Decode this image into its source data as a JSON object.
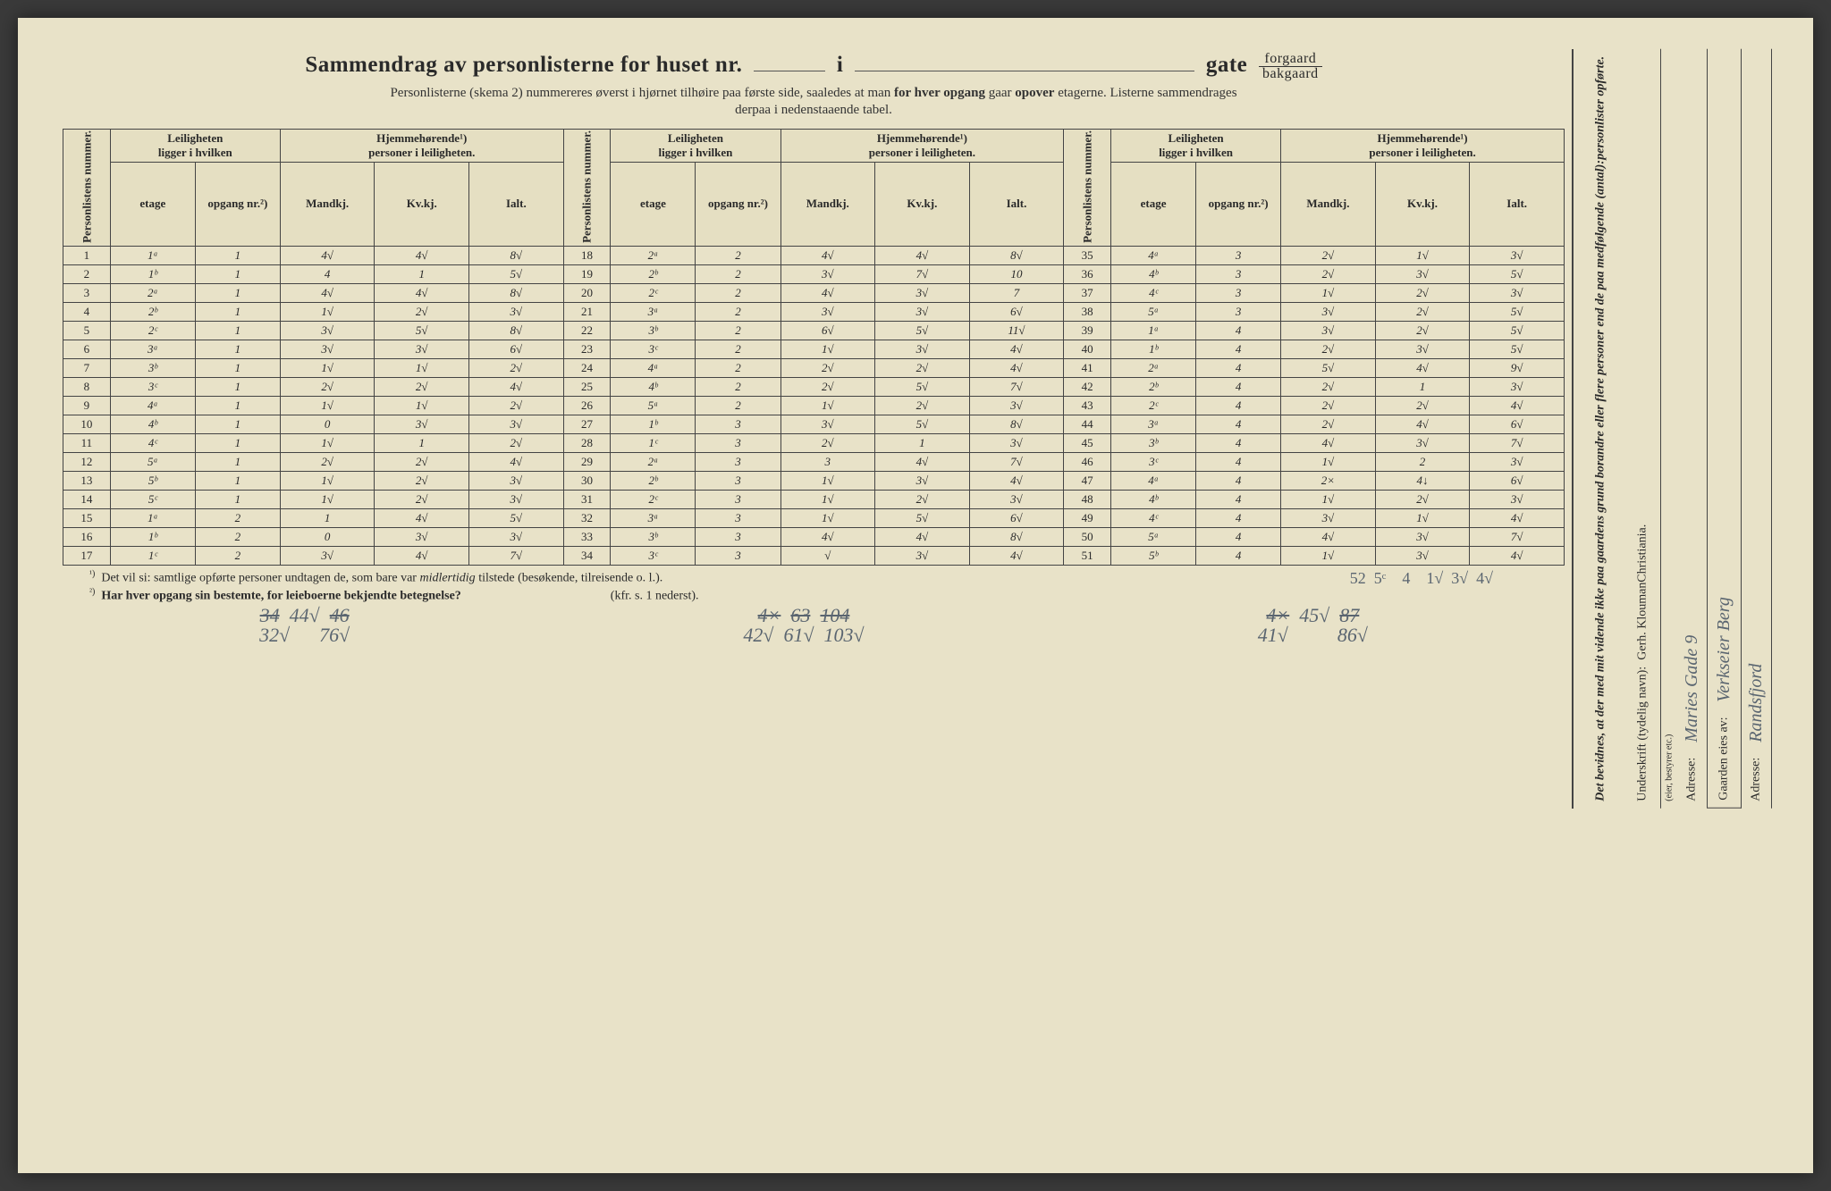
{
  "title": {
    "prefix": "Sammendrag av personlisterne for huset nr.",
    "mid": "i",
    "suffix": "gate",
    "frac_num": "forgaard",
    "frac_den": "bakgaard"
  },
  "subtitle_1": "Personlisterne (skema 2) nummereres øverst i hjørnet tilhøire paa første side, saaledes at man ",
  "subtitle_bold1": "for hver opgang",
  "subtitle_2": " gaar ",
  "subtitle_bold2": "opover",
  "subtitle_3": " etagerne.  Listerne sammendrages",
  "subtitle_4": "derpaa i nedenstaaende tabel.",
  "headers": {
    "personlistens": "Personlistens nummer.",
    "leiligheten_l1": "Leiligheten",
    "leiligheten_l2": "ligger i hvilken",
    "hjemme_l1": "Hjemmehørende¹)",
    "hjemme_l2": "personer i leiligheten.",
    "etage": "etage",
    "opgang": "opgang nr.²)",
    "mandkj": "Mandkj.",
    "kvkj": "Kv.kj.",
    "ialt": "Ialt."
  },
  "rows": [
    {
      "n": 1,
      "e": "1ᵃ",
      "o": "1",
      "m": "4√",
      "k": "4√",
      "i": "8√"
    },
    {
      "n": 2,
      "e": "1ᵇ",
      "o": "1",
      "m": "4",
      "k": "1",
      "i": "5√"
    },
    {
      "n": 3,
      "e": "2ᵃ",
      "o": "1",
      "m": "4√",
      "k": "4√",
      "i": "8√"
    },
    {
      "n": 4,
      "e": "2ᵇ",
      "o": "1",
      "m": "1√",
      "k": "2√",
      "i": "3√"
    },
    {
      "n": 5,
      "e": "2ᶜ",
      "o": "1",
      "m": "3√",
      "k": "5√",
      "i": "8√"
    },
    {
      "n": 6,
      "e": "3ᵃ",
      "o": "1",
      "m": "3√",
      "k": "3√",
      "i": "6√"
    },
    {
      "n": 7,
      "e": "3ᵇ",
      "o": "1",
      "m": "1√",
      "k": "1√",
      "i": "2√"
    },
    {
      "n": 8,
      "e": "3ᶜ",
      "o": "1",
      "m": "2√",
      "k": "2√",
      "i": "4√"
    },
    {
      "n": 9,
      "e": "4ᵃ",
      "o": "1",
      "m": "1√",
      "k": "1√",
      "i": "2√"
    },
    {
      "n": 10,
      "e": "4ᵇ",
      "o": "1",
      "m": "0",
      "k": "3√",
      "i": "3√"
    },
    {
      "n": 11,
      "e": "4ᶜ",
      "o": "1",
      "m": "1√",
      "k": "1",
      "i": "2√"
    },
    {
      "n": 12,
      "e": "5ᵃ",
      "o": "1",
      "m": "2√",
      "k": "2√",
      "i": "4√"
    },
    {
      "n": 13,
      "e": "5ᵇ",
      "o": "1",
      "m": "1√",
      "k": "2√",
      "i": "3√"
    },
    {
      "n": 14,
      "e": "5ᶜ",
      "o": "1",
      "m": "1√",
      "k": "2√",
      "i": "3√"
    },
    {
      "n": 15,
      "e": "1ᵃ",
      "o": "2",
      "m": "1",
      "k": "4√",
      "i": "5√"
    },
    {
      "n": 16,
      "e": "1ᵇ",
      "o": "2",
      "m": "0",
      "k": "3√",
      "i": "3√"
    },
    {
      "n": 17,
      "e": "1ᶜ",
      "o": "2",
      "m": "3√",
      "k": "4√",
      "i": "7√"
    },
    {
      "n": 18,
      "e": "2ᵃ",
      "o": "2",
      "m": "4√",
      "k": "4√",
      "i": "8√"
    },
    {
      "n": 19,
      "e": "2ᵇ",
      "o": "2",
      "m": "3√",
      "k": "7√",
      "i": "10"
    },
    {
      "n": 20,
      "e": "2ᶜ",
      "o": "2",
      "m": "4√",
      "k": "3√",
      "i": "7"
    },
    {
      "n": 21,
      "e": "3ᵃ",
      "o": "2",
      "m": "3√",
      "k": "3√",
      "i": "6√"
    },
    {
      "n": 22,
      "e": "3ᵇ",
      "o": "2",
      "m": "6√",
      "k": "5√",
      "i": "11√"
    },
    {
      "n": 23,
      "e": "3ᶜ",
      "o": "2",
      "m": "1√",
      "k": "3√",
      "i": "4√"
    },
    {
      "n": 24,
      "e": "4ᵃ",
      "o": "2",
      "m": "2√",
      "k": "2√",
      "i": "4√"
    },
    {
      "n": 25,
      "e": "4ᵇ",
      "o": "2",
      "m": "2√",
      "k": "5√",
      "i": "7√"
    },
    {
      "n": 26,
      "e": "5ᵃ",
      "o": "2",
      "m": "1√",
      "k": "2√",
      "i": "3√"
    },
    {
      "n": 27,
      "e": "1ᵇ",
      "o": "3",
      "m": "3√",
      "k": "5√",
      "i": "8√"
    },
    {
      "n": 28,
      "e": "1ᶜ",
      "o": "3",
      "m": "2√",
      "k": "1",
      "i": "3√"
    },
    {
      "n": 29,
      "e": "2ᵃ",
      "o": "3",
      "m": "3",
      "k": "4√",
      "i": "7√"
    },
    {
      "n": 30,
      "e": "2ᵇ",
      "o": "3",
      "m": "1√",
      "k": "3√",
      "i": "4√"
    },
    {
      "n": 31,
      "e": "2ᶜ",
      "o": "3",
      "m": "1√",
      "k": "2√",
      "i": "3√"
    },
    {
      "n": 32,
      "e": "3ᵃ",
      "o": "3",
      "m": "1√",
      "k": "5√",
      "i": "6√"
    },
    {
      "n": 33,
      "e": "3ᵇ",
      "o": "3",
      "m": "4√",
      "k": "4√",
      "i": "8√"
    },
    {
      "n": 34,
      "e": "3ᶜ",
      "o": "3",
      "m": "√",
      "k": "3√",
      "i": "4√"
    },
    {
      "n": 35,
      "e": "4ᵃ",
      "o": "3",
      "m": "2√",
      "k": "1√",
      "i": "3√"
    },
    {
      "n": 36,
      "e": "4ᵇ",
      "o": "3",
      "m": "2√",
      "k": "3√",
      "i": "5√"
    },
    {
      "n": 37,
      "e": "4ᶜ",
      "o": "3",
      "m": "1√",
      "k": "2√",
      "i": "3√"
    },
    {
      "n": 38,
      "e": "5ᵃ",
      "o": "3",
      "m": "3√",
      "k": "2√",
      "i": "5√"
    },
    {
      "n": 39,
      "e": "1ᵃ",
      "o": "4",
      "m": "3√",
      "k": "2√",
      "i": "5√"
    },
    {
      "n": 40,
      "e": "1ᵇ",
      "o": "4",
      "m": "2√",
      "k": "3√",
      "i": "5√"
    },
    {
      "n": 41,
      "e": "2ᵃ",
      "o": "4",
      "m": "5√",
      "k": "4√",
      "i": "9√"
    },
    {
      "n": 42,
      "e": "2ᵇ",
      "o": "4",
      "m": "2√",
      "k": "1",
      "i": "3√"
    },
    {
      "n": 43,
      "e": "2ᶜ",
      "o": "4",
      "m": "2√",
      "k": "2√",
      "i": "4√"
    },
    {
      "n": 44,
      "e": "3ᵃ",
      "o": "4",
      "m": "2√",
      "k": "4√",
      "i": "6√"
    },
    {
      "n": 45,
      "e": "3ᵇ",
      "o": "4",
      "m": "4√",
      "k": "3√",
      "i": "7√"
    },
    {
      "n": 46,
      "e": "3ᶜ",
      "o": "4",
      "m": "1√",
      "k": "2",
      "i": "3√"
    },
    {
      "n": 47,
      "e": "4ᵃ",
      "o": "4",
      "m": "2×",
      "k": "4↓",
      "i": "6√"
    },
    {
      "n": 48,
      "e": "4ᵇ",
      "o": "4",
      "m": "1√",
      "k": "2√",
      "i": "3√"
    },
    {
      "n": 49,
      "e": "4ᶜ",
      "o": "4",
      "m": "3√",
      "k": "1√",
      "i": "4√"
    },
    {
      "n": 50,
      "e": "5ᵃ",
      "o": "4",
      "m": "4√",
      "k": "3√",
      "i": "7√"
    },
    {
      "n": 51,
      "e": "5ᵇ",
      "o": "4",
      "m": "1√",
      "k": "3√",
      "i": "4√"
    }
  ],
  "extra_rows": [
    {
      "n": "52",
      "e": "5ᶜ",
      "o": "4",
      "m": "1√",
      "k": "3√",
      "i": "4√"
    }
  ],
  "footnotes": {
    "f1": "Det vil si: samtlige opførte personer undtagen de, som bare var ",
    "f1_ital": "midlertidig",
    "f1_end": " tilstede (besøkende, tilreisende o. l.).",
    "f2": "Har hver opgang sin bestemte, for leieboerne bekjendte betegnelse?",
    "f2_end": "(kfr. s. 1 nederst)."
  },
  "totals": {
    "c1": {
      "strike": "34",
      "v1": "44√",
      "strike2": "46",
      "v2": "32√",
      "v3": "76√"
    },
    "c2": {
      "strike": "4×",
      "v1": "42√",
      "strike2": "63",
      "v2": "61√",
      "strike3": "104",
      "v3": "103√"
    },
    "c3": {
      "strike": "4×",
      "v1": "41√",
      "v2": "45√",
      "strike2": "87",
      "v3": "86√"
    }
  },
  "right": {
    "bevid_l1": "Det bevidnes, at der med mit vidende ikke paa gaardens grund bor",
    "bevid_l2": "andre eller flere personer end de paa medfølgende (antal):",
    "bevid_l3": "personlister opførte.",
    "underskrift": "Underskrift (tydelig navn):",
    "underskrift_val1": "Gerh. Klouman",
    "underskrift_val2": "Christiania.",
    "adresse": "Adresse:",
    "adresse_val": "Maries Gade 9",
    "gaarden": "Gaarden eies av:",
    "gaarden_val": "Verkseier Berg",
    "adresse2": "Adresse:",
    "adresse2_val": "Randsfjord",
    "small": "(eier, bestyrer etc.)"
  }
}
